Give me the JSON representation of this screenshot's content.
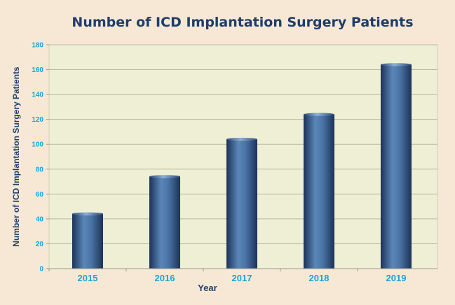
{
  "chart_data": {
    "type": "bar",
    "title": "Number of ICD Implantation Surgery Patients",
    "xlabel": "Year",
    "ylabel": "Number of ICD Implantation Surgery Patients",
    "categories": [
      "2015",
      "2016",
      "2017",
      "2018",
      "2019"
    ],
    "values": [
      44,
      74,
      104,
      124,
      164
    ],
    "ylim": [
      0,
      180
    ],
    "yticks": [
      "0",
      "20",
      "40",
      "60",
      "80",
      "100",
      "120",
      "140",
      "160",
      "180"
    ],
    "grid": true,
    "legend": "none",
    "colors": {
      "page_background": "#f7e8d6",
      "plot_background": "#eeefd4",
      "bar_dark": "#1b3358",
      "bar_light": "#5a86b8",
      "title": "#1f3d6b",
      "tick_labels": "#1aa3d6",
      "gridline": "#b8b8a2"
    }
  }
}
